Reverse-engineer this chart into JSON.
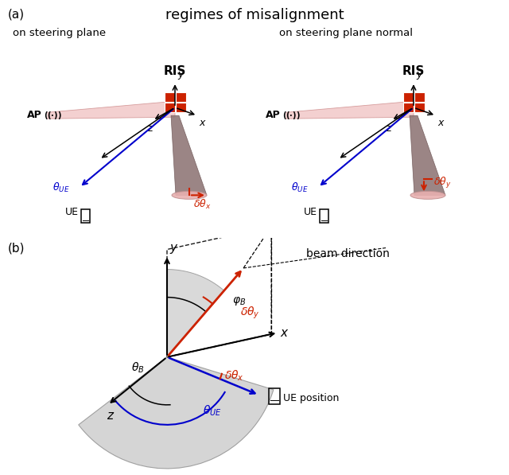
{
  "fig_width": 6.4,
  "fig_height": 5.97,
  "title_a": "regimes of misalignment",
  "label_a": "(a)",
  "label_b": "(b)",
  "subtitle_left": "on steering plane",
  "subtitle_right": "on steering plane normal",
  "ris_label": "RIS",
  "ap_label": "AP",
  "ue_label": "UE",
  "beam_direction_label": "beam direction",
  "ue_position_label": "UE position",
  "cone_color": "#907878",
  "cone_base_color": "#e8b0b0",
  "beam_pink": "#f0c0c0",
  "ris_red": "#cc2200",
  "blue_color": "#0000cc",
  "red_color": "#cc2200",
  "gray_fill": "#b8b8b8",
  "gray_fill2": "#d0d0d0"
}
